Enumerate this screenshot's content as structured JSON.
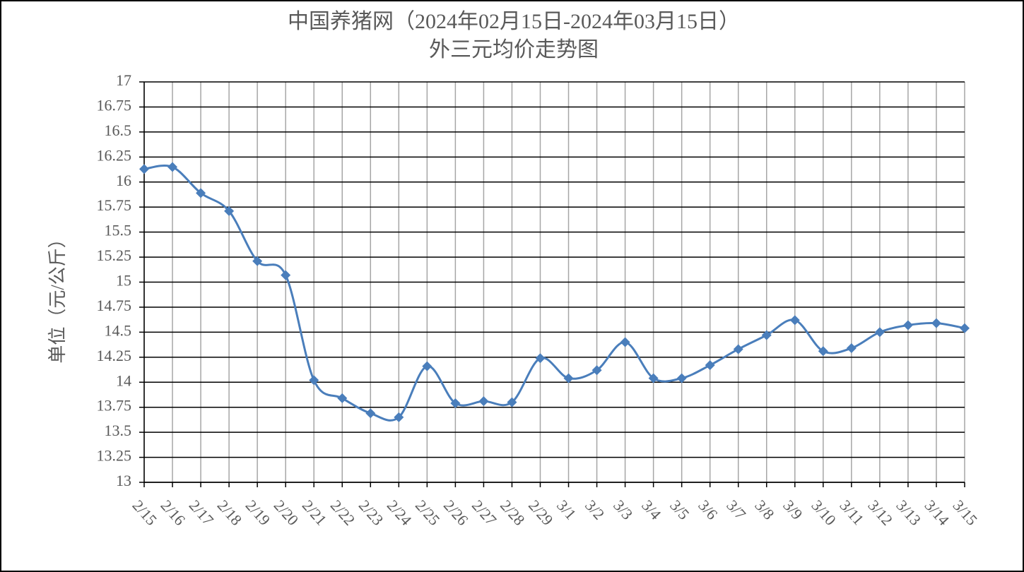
{
  "chart_data": {
    "type": "line",
    "title": "中国养猪网（2024年02月15日-2024年03月15日）",
    "subtitle": "外三元均价走势图",
    "y_label": "单位（元/公斤）",
    "categories": [
      "2/15",
      "2/16",
      "2/17",
      "2/18",
      "2/19",
      "2/20",
      "2/21",
      "2/22",
      "2/23",
      "2/24",
      "2/25",
      "2/26",
      "2/27",
      "2/28",
      "2/29",
      "3/1",
      "3/2",
      "3/3",
      "3/4",
      "3/5",
      "3/6",
      "3/7",
      "3/8",
      "3/9",
      "3/10",
      "3/11",
      "3/12",
      "3/13",
      "3/14",
      "3/15"
    ],
    "series": [
      {
        "color": "#4a7ebb",
        "values": [
          16.13,
          16.15,
          15.89,
          15.71,
          15.21,
          15.07,
          14.02,
          13.84,
          13.69,
          13.65,
          14.16,
          13.79,
          13.81,
          13.8,
          14.24,
          14.04,
          14.12,
          14.4,
          14.04,
          14.04,
          14.17,
          14.33,
          14.47,
          14.62,
          14.31,
          14.34,
          14.5,
          14.57,
          14.59,
          14.54
        ]
      }
    ],
    "ylim": [
      13,
      17
    ],
    "yticks": [
      13,
      13.25,
      13.5,
      13.75,
      14,
      14.25,
      14.5,
      14.75,
      15,
      15.25,
      15.5,
      15.75,
      16,
      16.25,
      16.5,
      16.75,
      17
    ],
    "grid": true,
    "smooth": true
  }
}
